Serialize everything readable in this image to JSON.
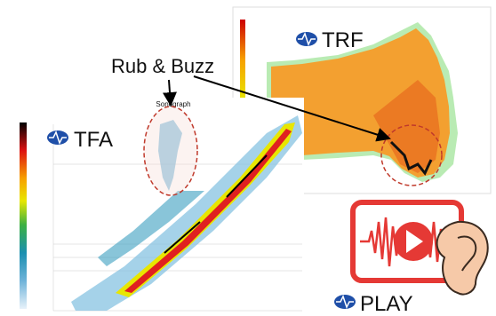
{
  "labels": {
    "sonograph": "Sonograph",
    "tfa": "TFA",
    "trf": "TRF",
    "annotation": "Rub & Buzz",
    "play": "PLAY"
  }
}
